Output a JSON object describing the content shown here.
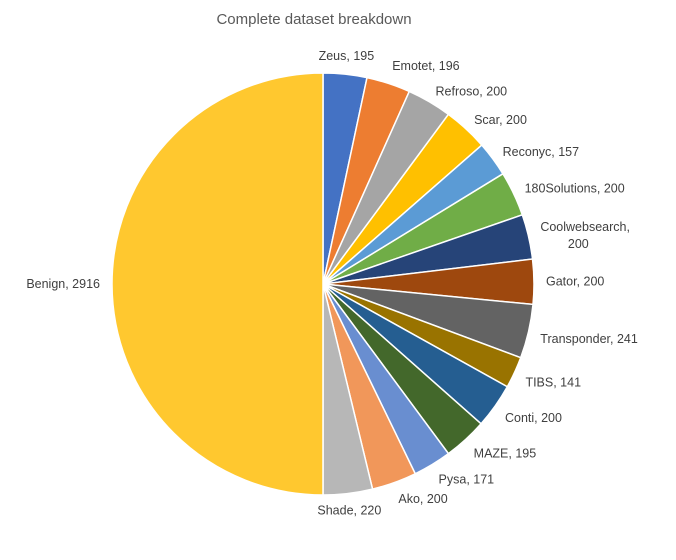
{
  "chart_data": {
    "type": "pie",
    "title": "Complete dataset breakdown",
    "start_angle_deg": 0,
    "direction": "clockwise",
    "slices": [
      {
        "label": "Zeus",
        "value": 195,
        "color": "#4472C4",
        "text": "Zeus, 195"
      },
      {
        "label": "Emotet",
        "value": 196,
        "color": "#ED7D31",
        "text": "Emotet, 196"
      },
      {
        "label": "Refroso",
        "value": 200,
        "color": "#A5A5A5",
        "text": "Refroso, 200"
      },
      {
        "label": "Scar",
        "value": 200,
        "color": "#FFC000",
        "text": "Scar, 200"
      },
      {
        "label": "Reconyc",
        "value": 157,
        "color": "#5B9BD5",
        "text": "Reconyc, 157"
      },
      {
        "label": "180Solutions",
        "value": 200,
        "color": "#70AD47",
        "text": "180Solutions, 200"
      },
      {
        "label": "Coolwebsearch",
        "value": 200,
        "color": "#264478",
        "text": "Coolwebsearch, 200",
        "lines": [
          "Coolwebsearch,",
          "200"
        ]
      },
      {
        "label": "Gator",
        "value": 200,
        "color": "#9E480E",
        "text": "Gator, 200"
      },
      {
        "label": "Transponder",
        "value": 241,
        "color": "#636363",
        "text": "Transponder, 241"
      },
      {
        "label": "TIBS",
        "value": 141,
        "color": "#997300",
        "text": "TIBS, 141"
      },
      {
        "label": "Conti",
        "value": 200,
        "color": "#255E91",
        "text": "Conti, 200"
      },
      {
        "label": "MAZE",
        "value": 195,
        "color": "#43682B",
        "text": "MAZE, 195"
      },
      {
        "label": "Pysa",
        "value": 171,
        "color": "#698ED0",
        "text": "Pysa, 171"
      },
      {
        "label": "Ako",
        "value": 200,
        "color": "#F1975A",
        "text": "Ako, 200"
      },
      {
        "label": "Shade",
        "value": 220,
        "color": "#B7B7B7",
        "text": "Shade, 220"
      },
      {
        "label": "Benign",
        "value": 2916,
        "color": "#FFC82F",
        "text": "Benign, 2916"
      }
    ]
  }
}
